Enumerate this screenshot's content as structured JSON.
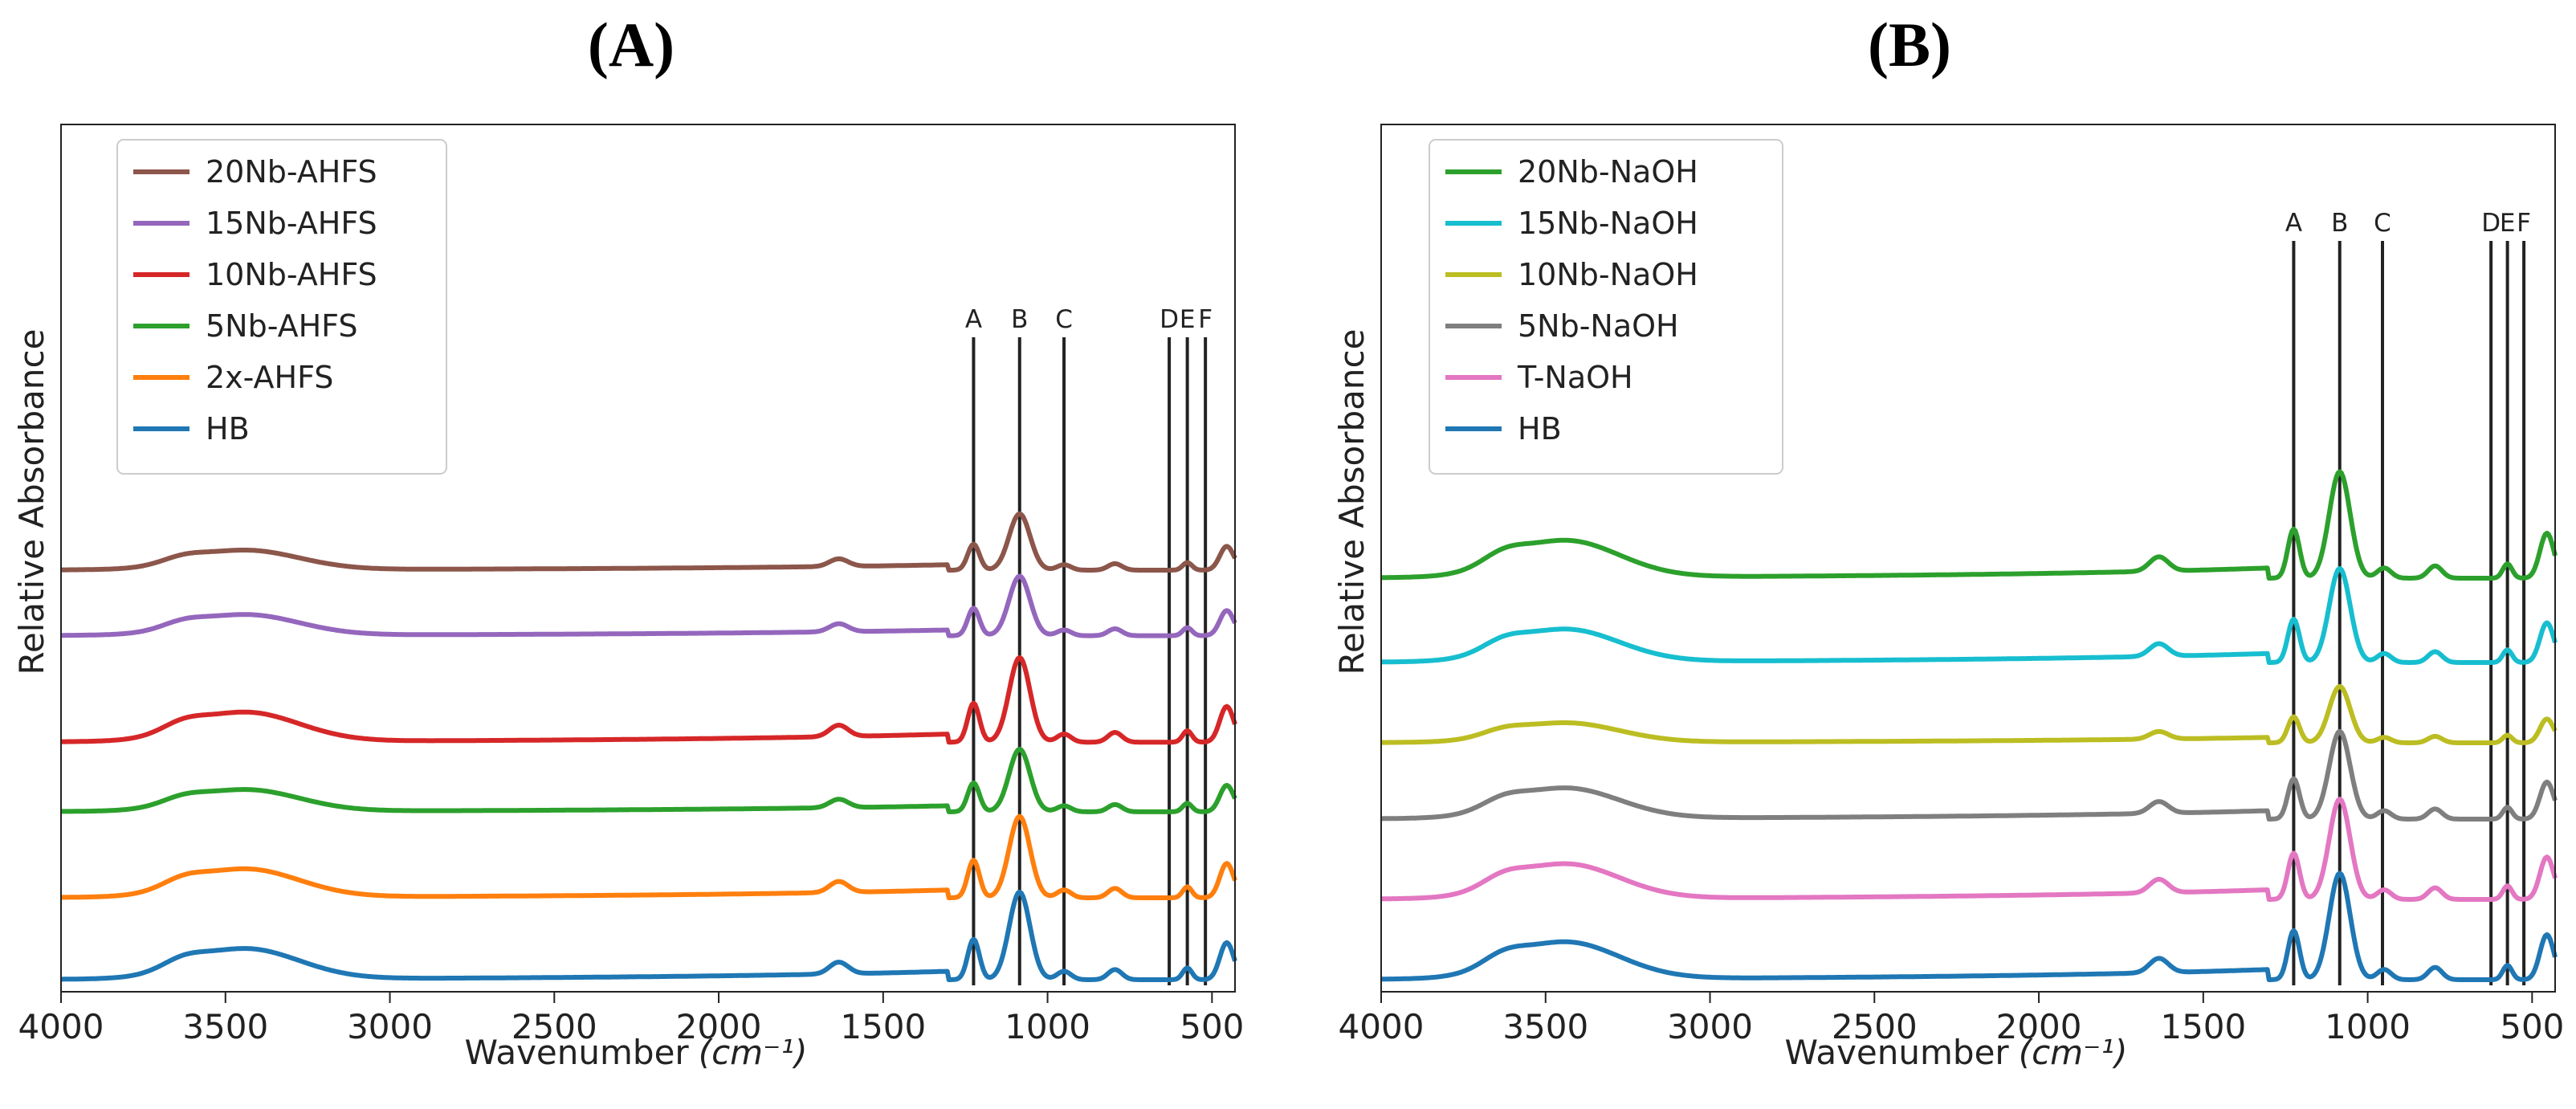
{
  "chart_data": [
    {
      "type": "line",
      "panel_label": "(A)",
      "title": "(A)",
      "xlabel": "Wavenumber",
      "xlabel_unit": "(cm⁻¹)",
      "ylabel": "Relative Absorbance",
      "xlim": [
        4000,
        430
      ],
      "x_inverted": true,
      "xticks": [
        4000,
        3500,
        3000,
        2500,
        2000,
        1500,
        1000,
        500
      ],
      "yticks": [],
      "grid": false,
      "legend_position": "top-left",
      "reference_lines": [
        {
          "label": "A",
          "x": 1225
        },
        {
          "label": "B",
          "x": 1085
        },
        {
          "label": "C",
          "x": 950
        },
        {
          "label": "D",
          "x": 630
        },
        {
          "label": "E",
          "x": 575
        },
        {
          "label": "F",
          "x": 520
        }
      ],
      "series": [
        {
          "name": "20Nb-AHFS",
          "color": "#8c564b",
          "offset": 5.0,
          "scale": 0.9,
          "flat": false
        },
        {
          "name": "15Nb-AHFS",
          "color": "#9467bd",
          "offset": 4.2,
          "scale": 0.95,
          "flat": false
        },
        {
          "name": "10Nb-AHFS",
          "color": "#d62728",
          "offset": 2.9,
          "scale": 1.35,
          "flat": false
        },
        {
          "name": "5Nb-AHFS",
          "color": "#2ca02c",
          "offset": 2.05,
          "scale": 1.0,
          "flat": false
        },
        {
          "name": "2x-AHFS",
          "color": "#ff7f0e",
          "offset": 1.0,
          "scale": 1.3,
          "flat": false
        },
        {
          "name": "HB",
          "color": "#1f77b4",
          "offset": 0.0,
          "scale": 1.4,
          "flat": false
        }
      ]
    },
    {
      "type": "line",
      "panel_label": "(B)",
      "title": "(B)",
      "xlabel": "Wavenumber",
      "xlabel_unit": "(cm⁻¹)",
      "ylabel": "Relative Absorbance",
      "xlim": [
        4000,
        430
      ],
      "x_inverted": true,
      "xticks": [
        4000,
        3500,
        3000,
        2500,
        2000,
        1500,
        1000,
        500
      ],
      "yticks": [],
      "grid": false,
      "legend_position": "top-left",
      "reference_lines": [
        {
          "label": "A",
          "x": 1225
        },
        {
          "label": "B",
          "x": 1085
        },
        {
          "label": "C",
          "x": 955
        },
        {
          "label": "D",
          "x": 625
        },
        {
          "label": "E",
          "x": 575
        },
        {
          "label": "F",
          "x": 525
        }
      ],
      "series": [
        {
          "name": "20Nb-NaOH",
          "color": "#2ca02c",
          "offset": 5.0,
          "scale": 1.7,
          "flat": false
        },
        {
          "name": "15Nb-NaOH",
          "color": "#17becf",
          "offset": 3.95,
          "scale": 1.5,
          "flat": false
        },
        {
          "name": "10Nb-NaOH",
          "color": "#bcbd22",
          "offset": 2.95,
          "scale": 0.9,
          "flat": false
        },
        {
          "name": "5Nb-NaOH",
          "color": "#7f7f7f",
          "offset": 2.0,
          "scale": 1.4,
          "flat": false
        },
        {
          "name": "T-NaOH",
          "color": "#e377c2",
          "offset": 1.0,
          "scale": 1.6,
          "flat": false
        },
        {
          "name": "HB",
          "color": "#1f77b4",
          "offset": 0.0,
          "scale": 1.7,
          "flat": false
        }
      ]
    }
  ]
}
